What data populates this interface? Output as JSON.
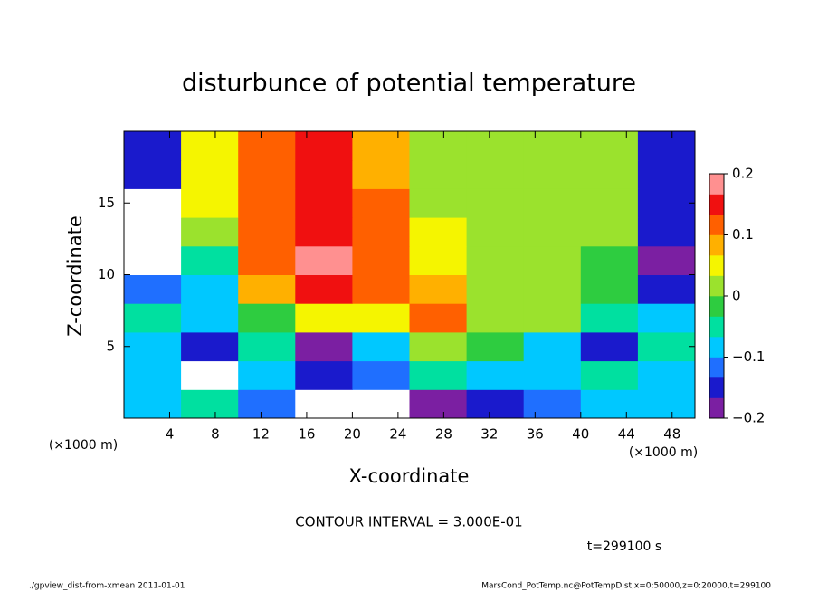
{
  "chart_data": {
    "type": "heatmap",
    "title": "disturbunce of potential temperature",
    "x_label": "X-coordinate",
    "y_label": "Z-coordinate",
    "x_unit": "(×1000 m)",
    "y_unit": "(×1000 m)",
    "annotation": "CONTOUR INTERVAL = 3.000E-01",
    "time_label": "t=299100 s",
    "footer_left": "./gpview_dist-from-xmean  2011-01-01",
    "footer_right": "MarsCond_PotTemp.nc@PotTempDist,x=0:50000,z=0:20000,t=299100",
    "xlim": [
      0,
      50
    ],
    "ylim": [
      0,
      20
    ],
    "xticks": [
      4,
      8,
      12,
      16,
      20,
      24,
      28,
      32,
      36,
      40,
      44,
      48
    ],
    "yticks": [
      5,
      10,
      15
    ],
    "clim": [
      -0.2,
      0.2
    ],
    "cticks": [
      {
        "value": -0.2,
        "label": "−0.2"
      },
      {
        "value": -0.1,
        "label": "−0.1"
      },
      0,
      0.1,
      0.2
    ],
    "colormap": [
      "#7b1fa2",
      "#1a1acc",
      "#1f6fff",
      "#00c8ff",
      "#00e0a0",
      "#2ecc40",
      "#9be22d",
      "#f5f500",
      "#ffb000",
      "#ff6000",
      "#f01010",
      "#ff9090"
    ],
    "x": [
      2.5,
      7.5,
      12.5,
      17.5,
      22.5,
      27.5,
      32.5,
      37.5,
      42.5,
      47.5
    ],
    "y": [
      1,
      3,
      5,
      7,
      9,
      11,
      13,
      15,
      17,
      19
    ],
    "z": [
      [
        -0.1,
        -0.05,
        -0.12,
        -0.25,
        -0.25,
        -0.18,
        -0.15,
        -0.12,
        -0.1,
        -0.08
      ],
      [
        -0.08,
        -0.25,
        -0.1,
        -0.15,
        -0.12,
        -0.05,
        -0.08,
        -0.1,
        -0.05,
        -0.1
      ],
      [
        -0.1,
        -0.15,
        -0.05,
        -0.18,
        -0.1,
        0.0,
        -0.03,
        -0.08,
        -0.15,
        -0.05
      ],
      [
        -0.05,
        -0.08,
        -0.02,
        0.05,
        0.04,
        0.1,
        0.02,
        0.0,
        -0.05,
        -0.1
      ],
      [
        -0.12,
        -0.08,
        0.08,
        0.16,
        0.13,
        0.08,
        0.03,
        0.01,
        -0.03,
        -0.15
      ],
      [
        -0.25,
        -0.05,
        0.1,
        0.17,
        0.12,
        0.05,
        0.0,
        0.02,
        -0.02,
        -0.18
      ],
      [
        -0.25,
        0.0,
        0.12,
        0.16,
        0.1,
        0.04,
        0.0,
        0.03,
        0.0,
        -0.16
      ],
      [
        -0.22,
        0.04,
        0.13,
        0.15,
        0.1,
        0.03,
        0.0,
        0.03,
        0.01,
        -0.15
      ],
      [
        -0.15,
        0.06,
        0.13,
        0.15,
        0.09,
        0.03,
        0.01,
        0.03,
        0.01,
        -0.14
      ],
      [
        -0.15,
        0.05,
        0.12,
        0.14,
        0.08,
        0.02,
        0.0,
        0.02,
        0.0,
        -0.15
      ]
    ]
  }
}
